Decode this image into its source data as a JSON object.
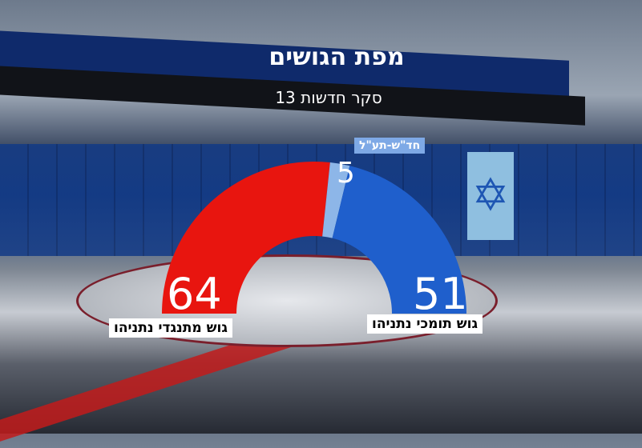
{
  "header": {
    "title": "מפת הגושים",
    "subtitle": "סקר חדשות 13"
  },
  "chart_data": {
    "type": "pie",
    "subtype": "semicircle-donut",
    "total": 120,
    "slices": [
      {
        "label": "גוש מתנגדי נתניהו",
        "value": 64,
        "display": "64",
        "color": "#e8150f"
      },
      {
        "label": "חד\"ש-תע\"ל",
        "value": 5,
        "display": "5",
        "color": "#8db6e8"
      },
      {
        "label": "גוש תומכי נתניהו",
        "value": 51,
        "display": "51",
        "color": "#1f5fcc"
      }
    ]
  }
}
